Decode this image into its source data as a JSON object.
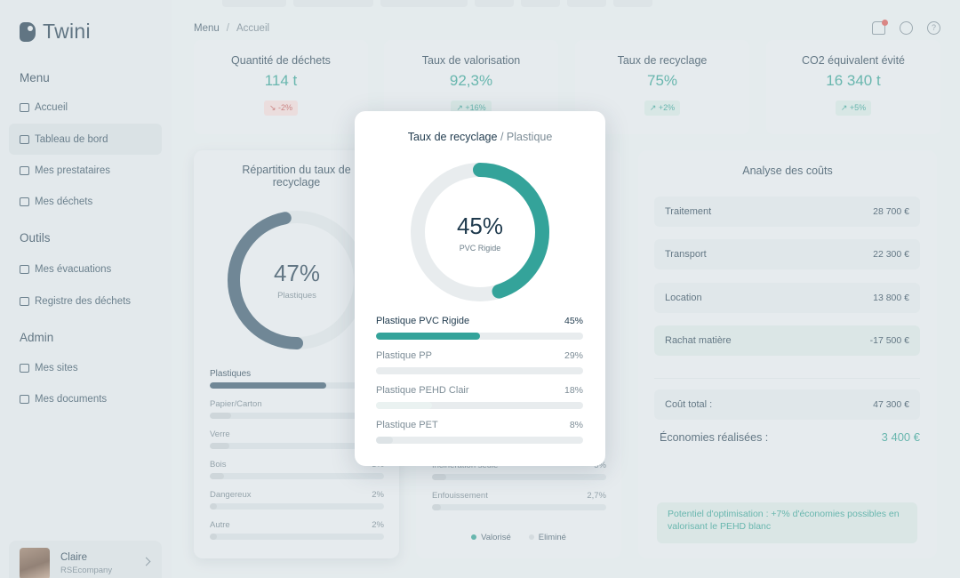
{
  "app": {
    "name": "Twini"
  },
  "sidebar": {
    "sections": [
      {
        "title": "Menu",
        "items": [
          {
            "label": "Accueil",
            "icon": "home-icon"
          },
          {
            "label": "Tableau de bord",
            "icon": "chart-icon",
            "active": true
          },
          {
            "label": "Mes prestataires",
            "icon": "users-icon"
          },
          {
            "label": "Mes déchets",
            "icon": "trash-icon"
          }
        ]
      },
      {
        "title": "Outils",
        "items": [
          {
            "label": "Mes évacuations",
            "icon": "truck-icon"
          },
          {
            "label": "Registre des déchets",
            "icon": "register-icon"
          }
        ]
      },
      {
        "title": "Admin",
        "items": [
          {
            "label": "Mes sites",
            "icon": "building-icon"
          },
          {
            "label": "Mes documents",
            "icon": "document-icon"
          }
        ]
      }
    ],
    "user": {
      "name": "Claire",
      "company": "RSEcompany"
    }
  },
  "breadcrumb": {
    "root": "Menu",
    "separator": "/",
    "current": "Accueil"
  },
  "kpis": [
    {
      "title": "Quantité de déchets",
      "value": "114 t",
      "badge": "-2%",
      "trend": "down"
    },
    {
      "title": "Taux de valorisation",
      "value": "92,3%",
      "badge": "+16%",
      "trend": "up"
    },
    {
      "title": "Taux de recyclage",
      "value": "75%",
      "badge": "+2%",
      "trend": "up"
    },
    {
      "title": "CO2 équivalent évité",
      "value": "16 340 t",
      "badge": "+5%",
      "trend": "up"
    }
  ],
  "repartition": {
    "title": "Répartition du taux de recyclage",
    "donut_value": "47%",
    "donut_label": "Plastiques",
    "donut_fraction": 0.47,
    "rows": [
      {
        "label": "Plastiques",
        "pct": "",
        "fraction": 0.67,
        "highlight": true
      },
      {
        "label": "Papier/Carton",
        "pct": "",
        "fraction": 0.12
      },
      {
        "label": "Verre",
        "pct": "",
        "fraction": 0.11
      },
      {
        "label": "Bois",
        "pct": "3%",
        "fraction": 0.08
      },
      {
        "label": "Dangereux",
        "pct": "2%",
        "fraction": 0.04
      },
      {
        "label": "Autre",
        "pct": "2%",
        "fraction": 0.04
      }
    ]
  },
  "middle": {
    "rows": [
      {
        "label": "Incinération seule",
        "pct": "5%",
        "fraction": 0.08
      },
      {
        "label": "Enfouissement",
        "pct": "2,7%",
        "fraction": 0.05
      }
    ],
    "legend": [
      "Valorisé",
      "Eliminé"
    ]
  },
  "couts": {
    "title": "Analyse des coûts",
    "items": [
      {
        "label": "Traitement",
        "value": "28 700 €"
      },
      {
        "label": "Transport",
        "value": "22 300 €"
      },
      {
        "label": "Location",
        "value": "13 800 €"
      },
      {
        "label": "Rachat matière",
        "value": "-17 500 €",
        "green": true
      }
    ],
    "total_label": "Coût total :",
    "total_value": "47 300 €",
    "savings_label": "Économies réalisées :",
    "savings_value": "3 400 €",
    "tip": "Potentiel d'optimisation : +7% d'économies possibles en valorisant le PEHD blanc"
  },
  "modal": {
    "title": "Taux de recyclage",
    "subtitle": "/ Plastique",
    "donut_value": "45%",
    "donut_label": "PVC Rigide",
    "donut_fraction": 0.45,
    "rows": [
      {
        "label": "Plastique PVC Rigide",
        "pct": "45%",
        "fraction": 0.5,
        "color": "#34a39a",
        "strong": true
      },
      {
        "label": "Plastique PP",
        "pct": "29%",
        "fraction": 0.42,
        "color": "#e8ecee"
      },
      {
        "label": "Plastique PEHD Clair",
        "pct": "18%",
        "fraction": 0.27,
        "color": "#eaf2f1"
      },
      {
        "label": "Plastique PET",
        "pct": "8%",
        "fraction": 0.08,
        "color": "#dde3e6"
      }
    ]
  },
  "colors": {
    "accent": "#2a9d8f",
    "navy": "#1f3a4d",
    "teal_fill": "#34a39a"
  }
}
